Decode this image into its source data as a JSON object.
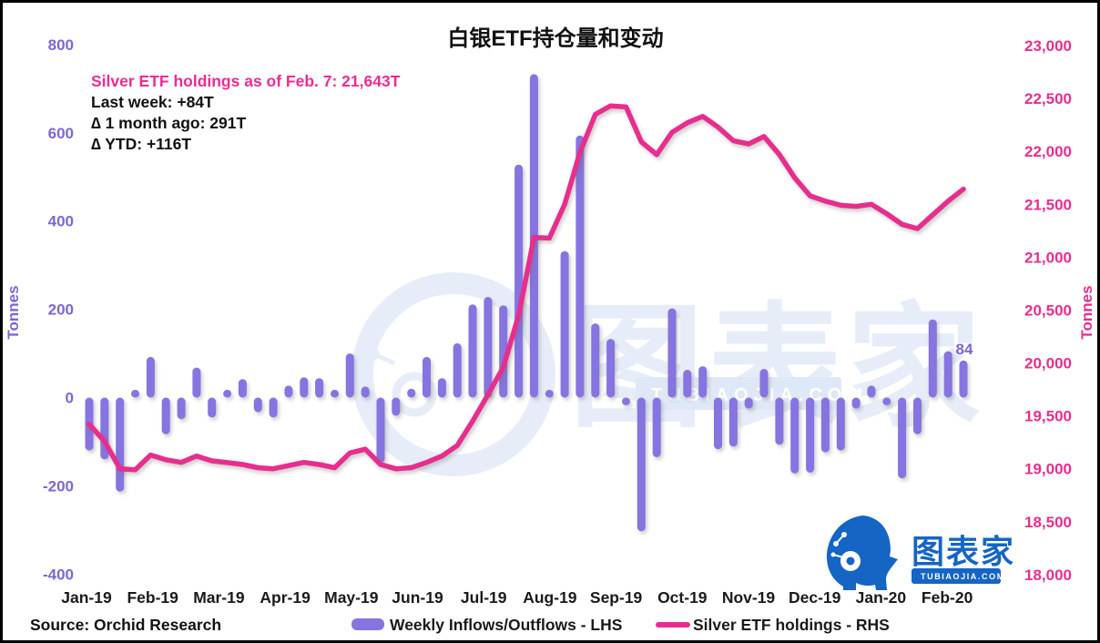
{
  "header": {
    "title": "白银ETF持仓量和变动"
  },
  "annotation": {
    "line1": "Silver ETF holdings as of Feb. 7: 21,643T",
    "line2": "Last week: +84T",
    "line3": "∆ 1 month ago: 291T",
    "line4": "∆ YTD: +116T"
  },
  "legend": {
    "bars_label": "Weekly Inflows/Outflows - LHS",
    "line_label": "Silver ETF holdings - RHS"
  },
  "source": "Source: Orchid Research",
  "watermark": {
    "brand": "图表家",
    "domain": "TUBIAOJIA.COM"
  },
  "logo": {
    "brand": "图表家",
    "domain": "TUBIAOJIA.COM"
  },
  "colors": {
    "bar_purple": "#8674e0",
    "purple_text": "#7d66d8",
    "pink": "#e72e8e",
    "logo_blue": "#1565c4",
    "watermark_blue": "#e7edf8"
  },
  "chart_data": {
    "type": "combo-bar-line",
    "title": "白银ETF持仓量和变动",
    "grid": "off",
    "legend_position": "bottom-center",
    "x_axis": {
      "labels": [
        "Jan-19",
        "Feb-19",
        "Mar-19",
        "Apr-19",
        "May-19",
        "Jun-19",
        "Jul-19",
        "Aug-19",
        "Sep-19",
        "Oct-19",
        "Nov-19",
        "Dec-19",
        "Jan-20",
        "Feb-20"
      ],
      "frequency": "weekly"
    },
    "left_axis": {
      "title": "Tonnes",
      "range": [
        -400,
        800
      ],
      "ticks": [
        {
          "label": "800",
          "value": 800
        },
        {
          "label": "600",
          "value": 600
        },
        {
          "label": "400",
          "value": 400
        },
        {
          "label": "200",
          "value": 200
        },
        {
          "label": "0",
          "value": 0
        },
        {
          "label": "-200",
          "value": -200
        },
        {
          "label": "-400",
          "value": -400
        }
      ]
    },
    "right_axis": {
      "title": "Tonnes",
      "range": [
        18000,
        23000
      ],
      "ticks": [
        {
          "label": "23,000",
          "value": 23000
        },
        {
          "label": "22,500",
          "value": 22500
        },
        {
          "label": "22,000",
          "value": 22000
        },
        {
          "label": "21,500",
          "value": 21500
        },
        {
          "label": "21,000",
          "value": 21000
        },
        {
          "label": "20,500",
          "value": 20500
        },
        {
          "label": "20,000",
          "value": 20000
        },
        {
          "label": "19,500",
          "value": 19500
        },
        {
          "label": "19,000",
          "value": 19000
        },
        {
          "label": "18,500",
          "value": 18500
        },
        {
          "label": "18,000",
          "value": 18000
        }
      ]
    },
    "series": [
      {
        "name": "Weekly Inflows/Outflows - LHS",
        "type": "bar",
        "axis": "left",
        "values": [
          -120,
          -140,
          -213,
          15,
          92,
          -83,
          -49,
          68,
          -45,
          10,
          42,
          -33,
          -45,
          27,
          46,
          44,
          5,
          100,
          25,
          -148,
          -41,
          20,
          92,
          44,
          123,
          211,
          228,
          209,
          528,
          733,
          5,
          332,
          594,
          168,
          133,
          -8,
          -303,
          -135,
          202,
          63,
          71,
          -117,
          -111,
          -25,
          65,
          -107,
          -172,
          -170,
          -124,
          -120,
          -25,
          27,
          -5,
          -183,
          -83,
          177,
          105,
          84
        ]
      },
      {
        "name": "Silver ETF holdings - RHS",
        "type": "line",
        "axis": "right",
        "values": [
          19420,
          19260,
          19000,
          18990,
          19130,
          19085,
          19060,
          19120,
          19075,
          19058,
          19040,
          19010,
          19000,
          19030,
          19060,
          19040,
          19010,
          19150,
          19185,
          19040,
          19000,
          19010,
          19060,
          19120,
          19220,
          19450,
          19700,
          19960,
          20450,
          21185,
          21180,
          21500,
          21990,
          22350,
          22430,
          22420,
          22090,
          21970,
          22180,
          22270,
          22330,
          22230,
          22100,
          22070,
          22140,
          21970,
          21750,
          21580,
          21530,
          21490,
          21480,
          21500,
          21410,
          21310,
          21270,
          21400,
          21530,
          21643
        ]
      }
    ],
    "last_bar_label": "84",
    "last_point_value": "21,643"
  }
}
